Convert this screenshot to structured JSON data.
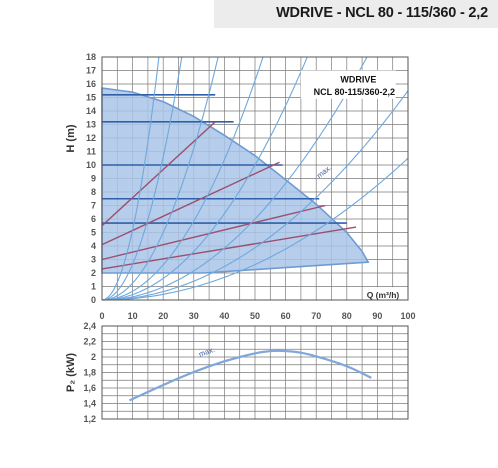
{
  "header": {
    "title": "WDRIVE - NCL 80 - 115/360 - 2,2"
  },
  "chart_data": [
    {
      "type": "line",
      "title": "WDRIVE",
      "subtitle": "NCL 80-115/360-2,2",
      "xlabel": "Q (m³/h)",
      "ylabel": "H (m)",
      "xlim": [
        0,
        100
      ],
      "ylim": [
        0,
        18
      ],
      "x_ticks": [
        "0",
        "10",
        "20",
        "30",
        "40",
        "50",
        "60",
        "70",
        "80",
        "90",
        "100"
      ],
      "y_ticks": [
        "0",
        "1",
        "2",
        "3",
        "4",
        "5",
        "6",
        "7",
        "8",
        "9",
        "10",
        "11",
        "12",
        "13",
        "14",
        "15",
        "16",
        "17",
        "18"
      ],
      "grid": true,
      "annotations": [
        "max."
      ],
      "colors": {
        "area": "#a9c4e8",
        "curve": "#6f9bd3",
        "speed_line": "#2f5fa7",
        "efficiency_line": "#9b4f6e",
        "system_curve": "#6fa8dc"
      },
      "series": [
        {
          "type": "area",
          "x": [
            0,
            10,
            20,
            30,
            40,
            50,
            60,
            70,
            80,
            85,
            87,
            60,
            33,
            0
          ],
          "y": [
            15.7,
            15.4,
            14.7,
            13.6,
            12.2,
            10.7,
            8.9,
            7.1,
            5.0,
            3.6,
            2.8,
            2.4,
            2.0,
            2.0
          ]
        },
        {
          "type": "speed_lines",
          "lines": [
            {
              "x": [
                0,
                37
              ],
              "y": [
                15.2,
                15.2
              ]
            },
            {
              "x": [
                0,
                43
              ],
              "y": [
                13.2,
                13.2
              ]
            },
            {
              "x": [
                0,
                59
              ],
              "y": [
                10.0,
                10.0
              ]
            },
            {
              "x": [
                0,
                71
              ],
              "y": [
                7.5,
                7.5
              ]
            },
            {
              "x": [
                0,
                80
              ],
              "y": [
                5.7,
                5.7
              ]
            }
          ]
        },
        {
          "type": "efficiency_lines",
          "lines": [
            {
              "x": [
                0,
                37
              ],
              "y": [
                5.5,
                13.2
              ]
            },
            {
              "x": [
                0,
                58
              ],
              "y": [
                4.1,
                10.2
              ]
            },
            {
              "x": [
                0,
                73
              ],
              "y": [
                3.0,
                7.0
              ]
            },
            {
              "x": [
                0,
                83
              ],
              "y": [
                2.3,
                5.4
              ]
            }
          ]
        },
        {
          "type": "system_curves",
          "k": [
            0.052,
            0.0265,
            0.0125,
            0.0065,
            0.004,
            0.0024,
            0.00155,
            0.00105
          ]
        }
      ]
    },
    {
      "type": "line",
      "xlabel": "",
      "ylabel": "P₂ (kW)",
      "xlim": [
        0,
        100
      ],
      "ylim": [
        1.2,
        2.4
      ],
      "y_ticks": [
        "1,2",
        "1,4",
        "1,6",
        "1,8",
        "2",
        "2,2",
        "2,4"
      ],
      "grid": true,
      "annotations": [
        "max."
      ],
      "series": [
        {
          "x": [
            9,
            20,
            30,
            40,
            50,
            55,
            60,
            65,
            70,
            80,
            88
          ],
          "y": [
            1.44,
            1.64,
            1.81,
            1.95,
            2.05,
            2.08,
            2.08,
            2.06,
            2.01,
            1.89,
            1.73
          ]
        }
      ]
    }
  ]
}
